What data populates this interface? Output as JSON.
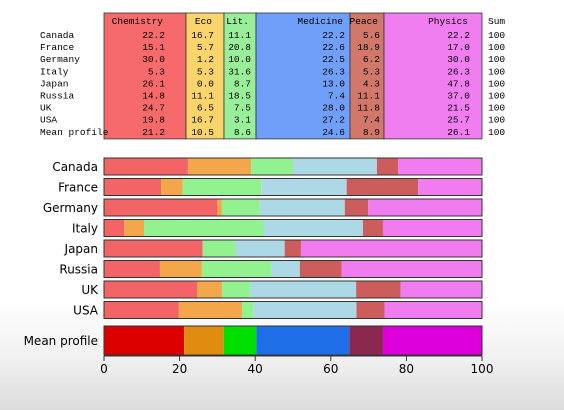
{
  "chart_data": {
    "type": "bar",
    "orientation": "horizontal",
    "stacked": true,
    "categories": [
      "Canada",
      "France",
      "Germany",
      "Italy",
      "Japan",
      "Russia",
      "UK",
      "USA"
    ],
    "summary_category": "Mean profile",
    "series": [
      {
        "name": "Chemistry",
        "values": [
          22.2,
          15.1,
          30.0,
          5.3,
          26.1,
          14.8,
          24.7,
          19.8
        ],
        "mean": 21.2
      },
      {
        "name": "Eco",
        "values": [
          16.7,
          5.7,
          1.2,
          5.3,
          0.0,
          11.1,
          6.5,
          16.7
        ],
        "mean": 10.5
      },
      {
        "name": "Lit.",
        "values": [
          11.1,
          20.8,
          10.0,
          31.6,
          8.7,
          18.5,
          7.5,
          3.1
        ],
        "mean": 8.6
      },
      {
        "name": "Medicine",
        "values": [
          22.2,
          22.6,
          22.5,
          26.3,
          13.0,
          7.4,
          28.0,
          27.2
        ],
        "mean": 24.6
      },
      {
        "name": "Peace",
        "values": [
          5.6,
          18.9,
          6.2,
          5.3,
          4.3,
          11.1,
          11.8,
          7.4
        ],
        "mean": 8.9
      },
      {
        "name": "Physics",
        "values": [
          22.2,
          17.0,
          30.0,
          26.3,
          47.8,
          37.0,
          21.5,
          25.7
        ],
        "mean": 26.1
      }
    ],
    "sum_label": "Sum",
    "sums": [
      "100",
      "100",
      "100",
      "100",
      "100",
      "100",
      "100",
      "100",
      "100"
    ],
    "xlim": [
      0,
      100
    ],
    "xticks": [
      "0",
      "20",
      "40",
      "60",
      "80",
      "100"
    ],
    "grid": false,
    "legend": "none"
  },
  "colors": {
    "row_fill": [
      "#f26466",
      "#f4a64a",
      "#92f290",
      "#add8e6",
      "#cd5c5c",
      "#f07cf0"
    ],
    "mean_fill": [
      "#dd0000",
      "#e08c10",
      "#00e000",
      "#1e6fe8",
      "#8b2850",
      "#dd00dd"
    ],
    "header_fill": [
      "#f66a6c",
      "#fbd56c",
      "#99ef99",
      "#6f9ff8",
      "#d1786a",
      "#f07ef0"
    ],
    "edge": "#333333",
    "text": "#000000"
  }
}
